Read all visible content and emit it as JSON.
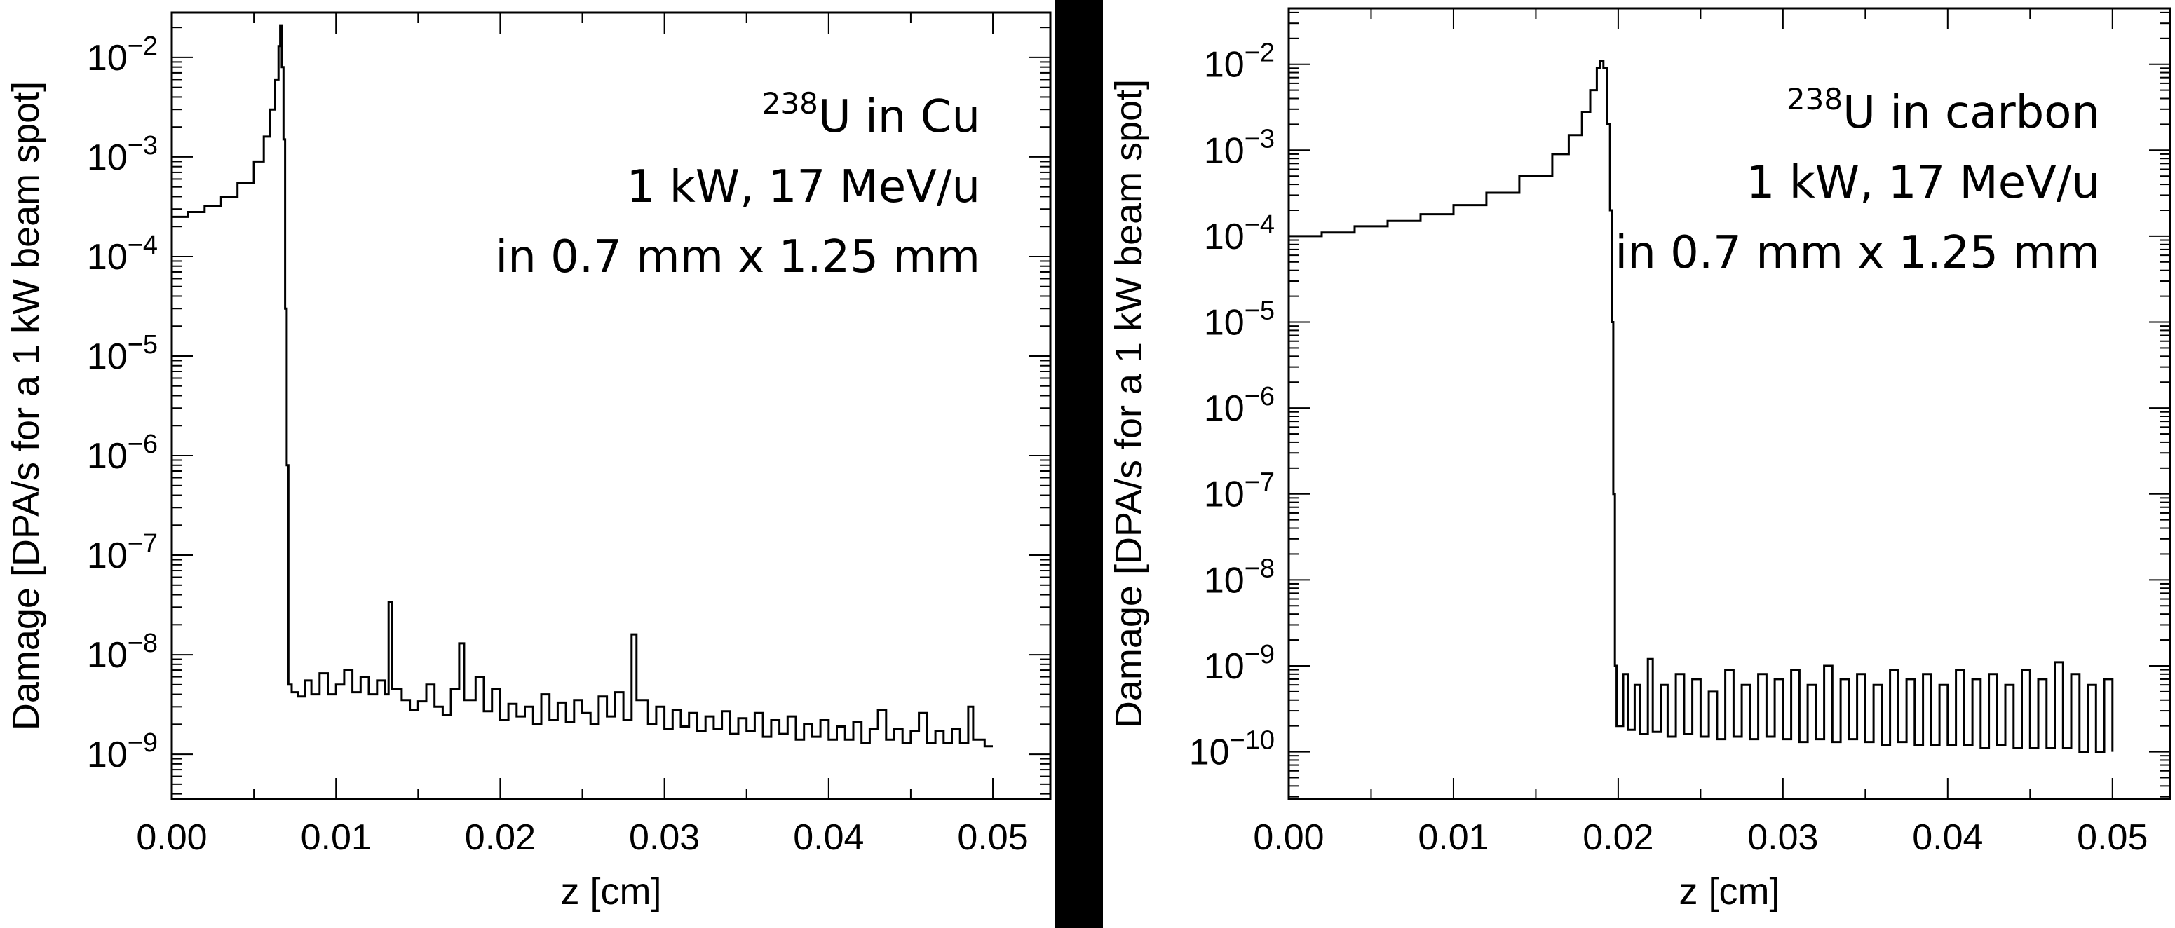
{
  "chart_data": [
    {
      "type": "line",
      "annotation": {
        "isotope_mass": "238",
        "line1_rest": "U in Cu",
        "line2": "1 kW, 17 MeV/u",
        "line3": "in 0.7 mm x 1.25 mm"
      },
      "xlabel": "z [cm]",
      "ylabel": "Damage [DPA/s for a 1 kW beam spot]",
      "xlim": [
        0,
        0.0535
      ],
      "ylim_log10": [
        -9.45,
        -1.55
      ],
      "yscale": "log",
      "x_ticks": [
        "0.00",
        "0.01",
        "0.02",
        "0.03",
        "0.04",
        "0.05"
      ],
      "y_tick_exponents": [
        "−2",
        "−3",
        "−4",
        "−5",
        "−6",
        "−7",
        "−8",
        "−9"
      ],
      "series": [
        {
          "points": [
            [
              0.0,
              0.00025
            ],
            [
              0.001,
              0.00028
            ],
            [
              0.002,
              0.00032
            ],
            [
              0.003,
              0.0004
            ],
            [
              0.004,
              0.00055
            ],
            [
              0.005,
              0.0009
            ],
            [
              0.0056,
              0.0016
            ],
            [
              0.006,
              0.003
            ],
            [
              0.0063,
              0.006
            ],
            [
              0.0065,
              0.013
            ],
            [
              0.0066,
              0.021
            ],
            [
              0.0067,
              0.008
            ],
            [
              0.0068,
              0.0015
            ],
            [
              0.0069,
              3e-05
            ],
            [
              0.007,
              8e-07
            ],
            [
              0.0071,
              5e-09
            ],
            [
              0.0073,
              4.2e-09
            ],
            [
              0.0077,
              3.8e-09
            ],
            [
              0.0081,
              5.5e-09
            ],
            [
              0.0085,
              4e-09
            ],
            [
              0.009,
              6.5e-09
            ],
            [
              0.0095,
              4e-09
            ],
            [
              0.01,
              5e-09
            ],
            [
              0.0105,
              7e-09
            ],
            [
              0.011,
              4.2e-09
            ],
            [
              0.0115,
              6e-09
            ],
            [
              0.012,
              4e-09
            ],
            [
              0.0125,
              5.5e-09
            ],
            [
              0.013,
              4e-09
            ],
            [
              0.0132,
              3.4e-08
            ],
            [
              0.0134,
              4.5e-09
            ],
            [
              0.014,
              3.5e-09
            ],
            [
              0.0145,
              2.8e-09
            ],
            [
              0.015,
              3.4e-09
            ],
            [
              0.0155,
              5e-09
            ],
            [
              0.016,
              3e-09
            ],
            [
              0.0165,
              2.5e-09
            ],
            [
              0.017,
              4.5e-09
            ],
            [
              0.0175,
              1.3e-08
            ],
            [
              0.0178,
              3.5e-09
            ],
            [
              0.0185,
              6e-09
            ],
            [
              0.019,
              2.7e-09
            ],
            [
              0.0195,
              4.5e-09
            ],
            [
              0.02,
              2.2e-09
            ],
            [
              0.0205,
              3.2e-09
            ],
            [
              0.021,
              2.4e-09
            ],
            [
              0.0215,
              3e-09
            ],
            [
              0.022,
              2e-09
            ],
            [
              0.0225,
              4e-09
            ],
            [
              0.023,
              2.2e-09
            ],
            [
              0.0235,
              3.3e-09
            ],
            [
              0.024,
              2.1e-09
            ],
            [
              0.0245,
              3.5e-09
            ],
            [
              0.025,
              2.6e-09
            ],
            [
              0.0255,
              2e-09
            ],
            [
              0.026,
              3.8e-09
            ],
            [
              0.0265,
              2.4e-09
            ],
            [
              0.027,
              4.2e-09
            ],
            [
              0.0275,
              2.2e-09
            ],
            [
              0.028,
              1.6e-08
            ],
            [
              0.0283,
              3.5e-09
            ],
            [
              0.029,
              2e-09
            ],
            [
              0.0295,
              3e-09
            ],
            [
              0.03,
              1.8e-09
            ],
            [
              0.0305,
              2.8e-09
            ],
            [
              0.031,
              1.9e-09
            ],
            [
              0.0315,
              2.6e-09
            ],
            [
              0.032,
              1.7e-09
            ],
            [
              0.0325,
              2.4e-09
            ],
            [
              0.033,
              1.8e-09
            ],
            [
              0.0335,
              2.7e-09
            ],
            [
              0.034,
              1.6e-09
            ],
            [
              0.0345,
              2.3e-09
            ],
            [
              0.035,
              1.7e-09
            ],
            [
              0.0355,
              2.6e-09
            ],
            [
              0.036,
              1.5e-09
            ],
            [
              0.0365,
              2.2e-09
            ],
            [
              0.037,
              1.6e-09
            ],
            [
              0.0375,
              2.4e-09
            ],
            [
              0.038,
              1.4e-09
            ],
            [
              0.0385,
              2e-09
            ],
            [
              0.039,
              1.5e-09
            ],
            [
              0.0395,
              2.2e-09
            ],
            [
              0.04,
              1.4e-09
            ],
            [
              0.0405,
              1.9e-09
            ],
            [
              0.041,
              1.4e-09
            ],
            [
              0.0415,
              2.1e-09
            ],
            [
              0.042,
              1.3e-09
            ],
            [
              0.0425,
              1.8e-09
            ],
            [
              0.043,
              2.8e-09
            ],
            [
              0.0435,
              1.4e-09
            ],
            [
              0.044,
              1.8e-09
            ],
            [
              0.0445,
              1.3e-09
            ],
            [
              0.045,
              1.7e-09
            ],
            [
              0.0455,
              2.6e-09
            ],
            [
              0.046,
              1.3e-09
            ],
            [
              0.0465,
              1.7e-09
            ],
            [
              0.047,
              1.3e-09
            ],
            [
              0.0475,
              1.8e-09
            ],
            [
              0.048,
              1.3e-09
            ],
            [
              0.0485,
              3e-09
            ],
            [
              0.0488,
              1.4e-09
            ],
            [
              0.0495,
              1.2e-09
            ],
            [
              0.05,
              1.2e-09
            ]
          ]
        }
      ]
    },
    {
      "type": "line",
      "annotation": {
        "isotope_mass": "238",
        "line1_rest": "U in carbon",
        "line2": "1 kW, 17 MeV/u",
        "line3": "in 0.7 mm x 1.25 mm"
      },
      "xlabel": "z [cm]",
      "ylabel": "Damage [DPA/s for a 1 kW beam spot]",
      "xlim": [
        0,
        0.0535
      ],
      "ylim_log10": [
        -10.55,
        -1.35
      ],
      "yscale": "log",
      "x_ticks": [
        "0.00",
        "0.01",
        "0.02",
        "0.03",
        "0.04",
        "0.05"
      ],
      "y_tick_exponents": [
        "−2",
        "−3",
        "−4",
        "−5",
        "−6",
        "−7",
        "−8",
        "−9",
        "−10"
      ],
      "series": [
        {
          "points": [
            [
              0.0,
              0.0001
            ],
            [
              0.002,
              0.00011
            ],
            [
              0.004,
              0.00013
            ],
            [
              0.006,
              0.00015
            ],
            [
              0.008,
              0.00018
            ],
            [
              0.01,
              0.00023
            ],
            [
              0.012,
              0.00032
            ],
            [
              0.014,
              0.0005
            ],
            [
              0.016,
              0.0009
            ],
            [
              0.017,
              0.0015
            ],
            [
              0.0178,
              0.0028
            ],
            [
              0.0183,
              0.005
            ],
            [
              0.0187,
              0.009
            ],
            [
              0.0189,
              0.011
            ],
            [
              0.0191,
              0.009
            ],
            [
              0.0193,
              0.002
            ],
            [
              0.0195,
              0.0002
            ],
            [
              0.0196,
              1e-05
            ],
            [
              0.0197,
              1e-07
            ],
            [
              0.0198,
              1e-09
            ],
            [
              0.0199,
              2e-10
            ],
            [
              0.0203,
              8e-10
            ],
            [
              0.0206,
              1.8e-10
            ],
            [
              0.021,
              6e-10
            ],
            [
              0.0213,
              1.6e-10
            ],
            [
              0.0218,
              1.2e-09
            ],
            [
              0.0221,
              1.7e-10
            ],
            [
              0.0226,
              6e-10
            ],
            [
              0.023,
              1.5e-10
            ],
            [
              0.0235,
              8e-10
            ],
            [
              0.024,
              1.6e-10
            ],
            [
              0.0245,
              7e-10
            ],
            [
              0.025,
              1.5e-10
            ],
            [
              0.0255,
              5e-10
            ],
            [
              0.026,
              1.4e-10
            ],
            [
              0.0265,
              9e-10
            ],
            [
              0.027,
              1.5e-10
            ],
            [
              0.0275,
              6e-10
            ],
            [
              0.028,
              1.4e-10
            ],
            [
              0.0285,
              8e-10
            ],
            [
              0.029,
              1.5e-10
            ],
            [
              0.0295,
              7e-10
            ],
            [
              0.03,
              1.4e-10
            ],
            [
              0.0305,
              9e-10
            ],
            [
              0.031,
              1.3e-10
            ],
            [
              0.0315,
              6e-10
            ],
            [
              0.032,
              1.4e-10
            ],
            [
              0.0325,
              1e-09
            ],
            [
              0.033,
              1.3e-10
            ],
            [
              0.0335,
              7e-10
            ],
            [
              0.034,
              1.4e-10
            ],
            [
              0.0345,
              8e-10
            ],
            [
              0.035,
              1.3e-10
            ],
            [
              0.0355,
              6e-10
            ],
            [
              0.036,
              1.2e-10
            ],
            [
              0.0365,
              9e-10
            ],
            [
              0.037,
              1.3e-10
            ],
            [
              0.0375,
              7e-10
            ],
            [
              0.038,
              1.2e-10
            ],
            [
              0.0385,
              8e-10
            ],
            [
              0.039,
              1.2e-10
            ],
            [
              0.0395,
              6e-10
            ],
            [
              0.04,
              1.2e-10
            ],
            [
              0.0405,
              9e-10
            ],
            [
              0.041,
              1.2e-10
            ],
            [
              0.0415,
              7e-10
            ],
            [
              0.042,
              1.1e-10
            ],
            [
              0.0425,
              8e-10
            ],
            [
              0.043,
              1.2e-10
            ],
            [
              0.0435,
              6e-10
            ],
            [
              0.044,
              1.1e-10
            ],
            [
              0.0445,
              9e-10
            ],
            [
              0.045,
              1.1e-10
            ],
            [
              0.0455,
              7e-10
            ],
            [
              0.046,
              1.1e-10
            ],
            [
              0.0465,
              1.1e-09
            ],
            [
              0.047,
              1.1e-10
            ],
            [
              0.0475,
              8e-10
            ],
            [
              0.048,
              1e-10
            ],
            [
              0.0485,
              6e-10
            ],
            [
              0.049,
              1e-10
            ],
            [
              0.0495,
              7e-10
            ],
            [
              0.05,
              1e-10
            ]
          ]
        }
      ]
    }
  ]
}
